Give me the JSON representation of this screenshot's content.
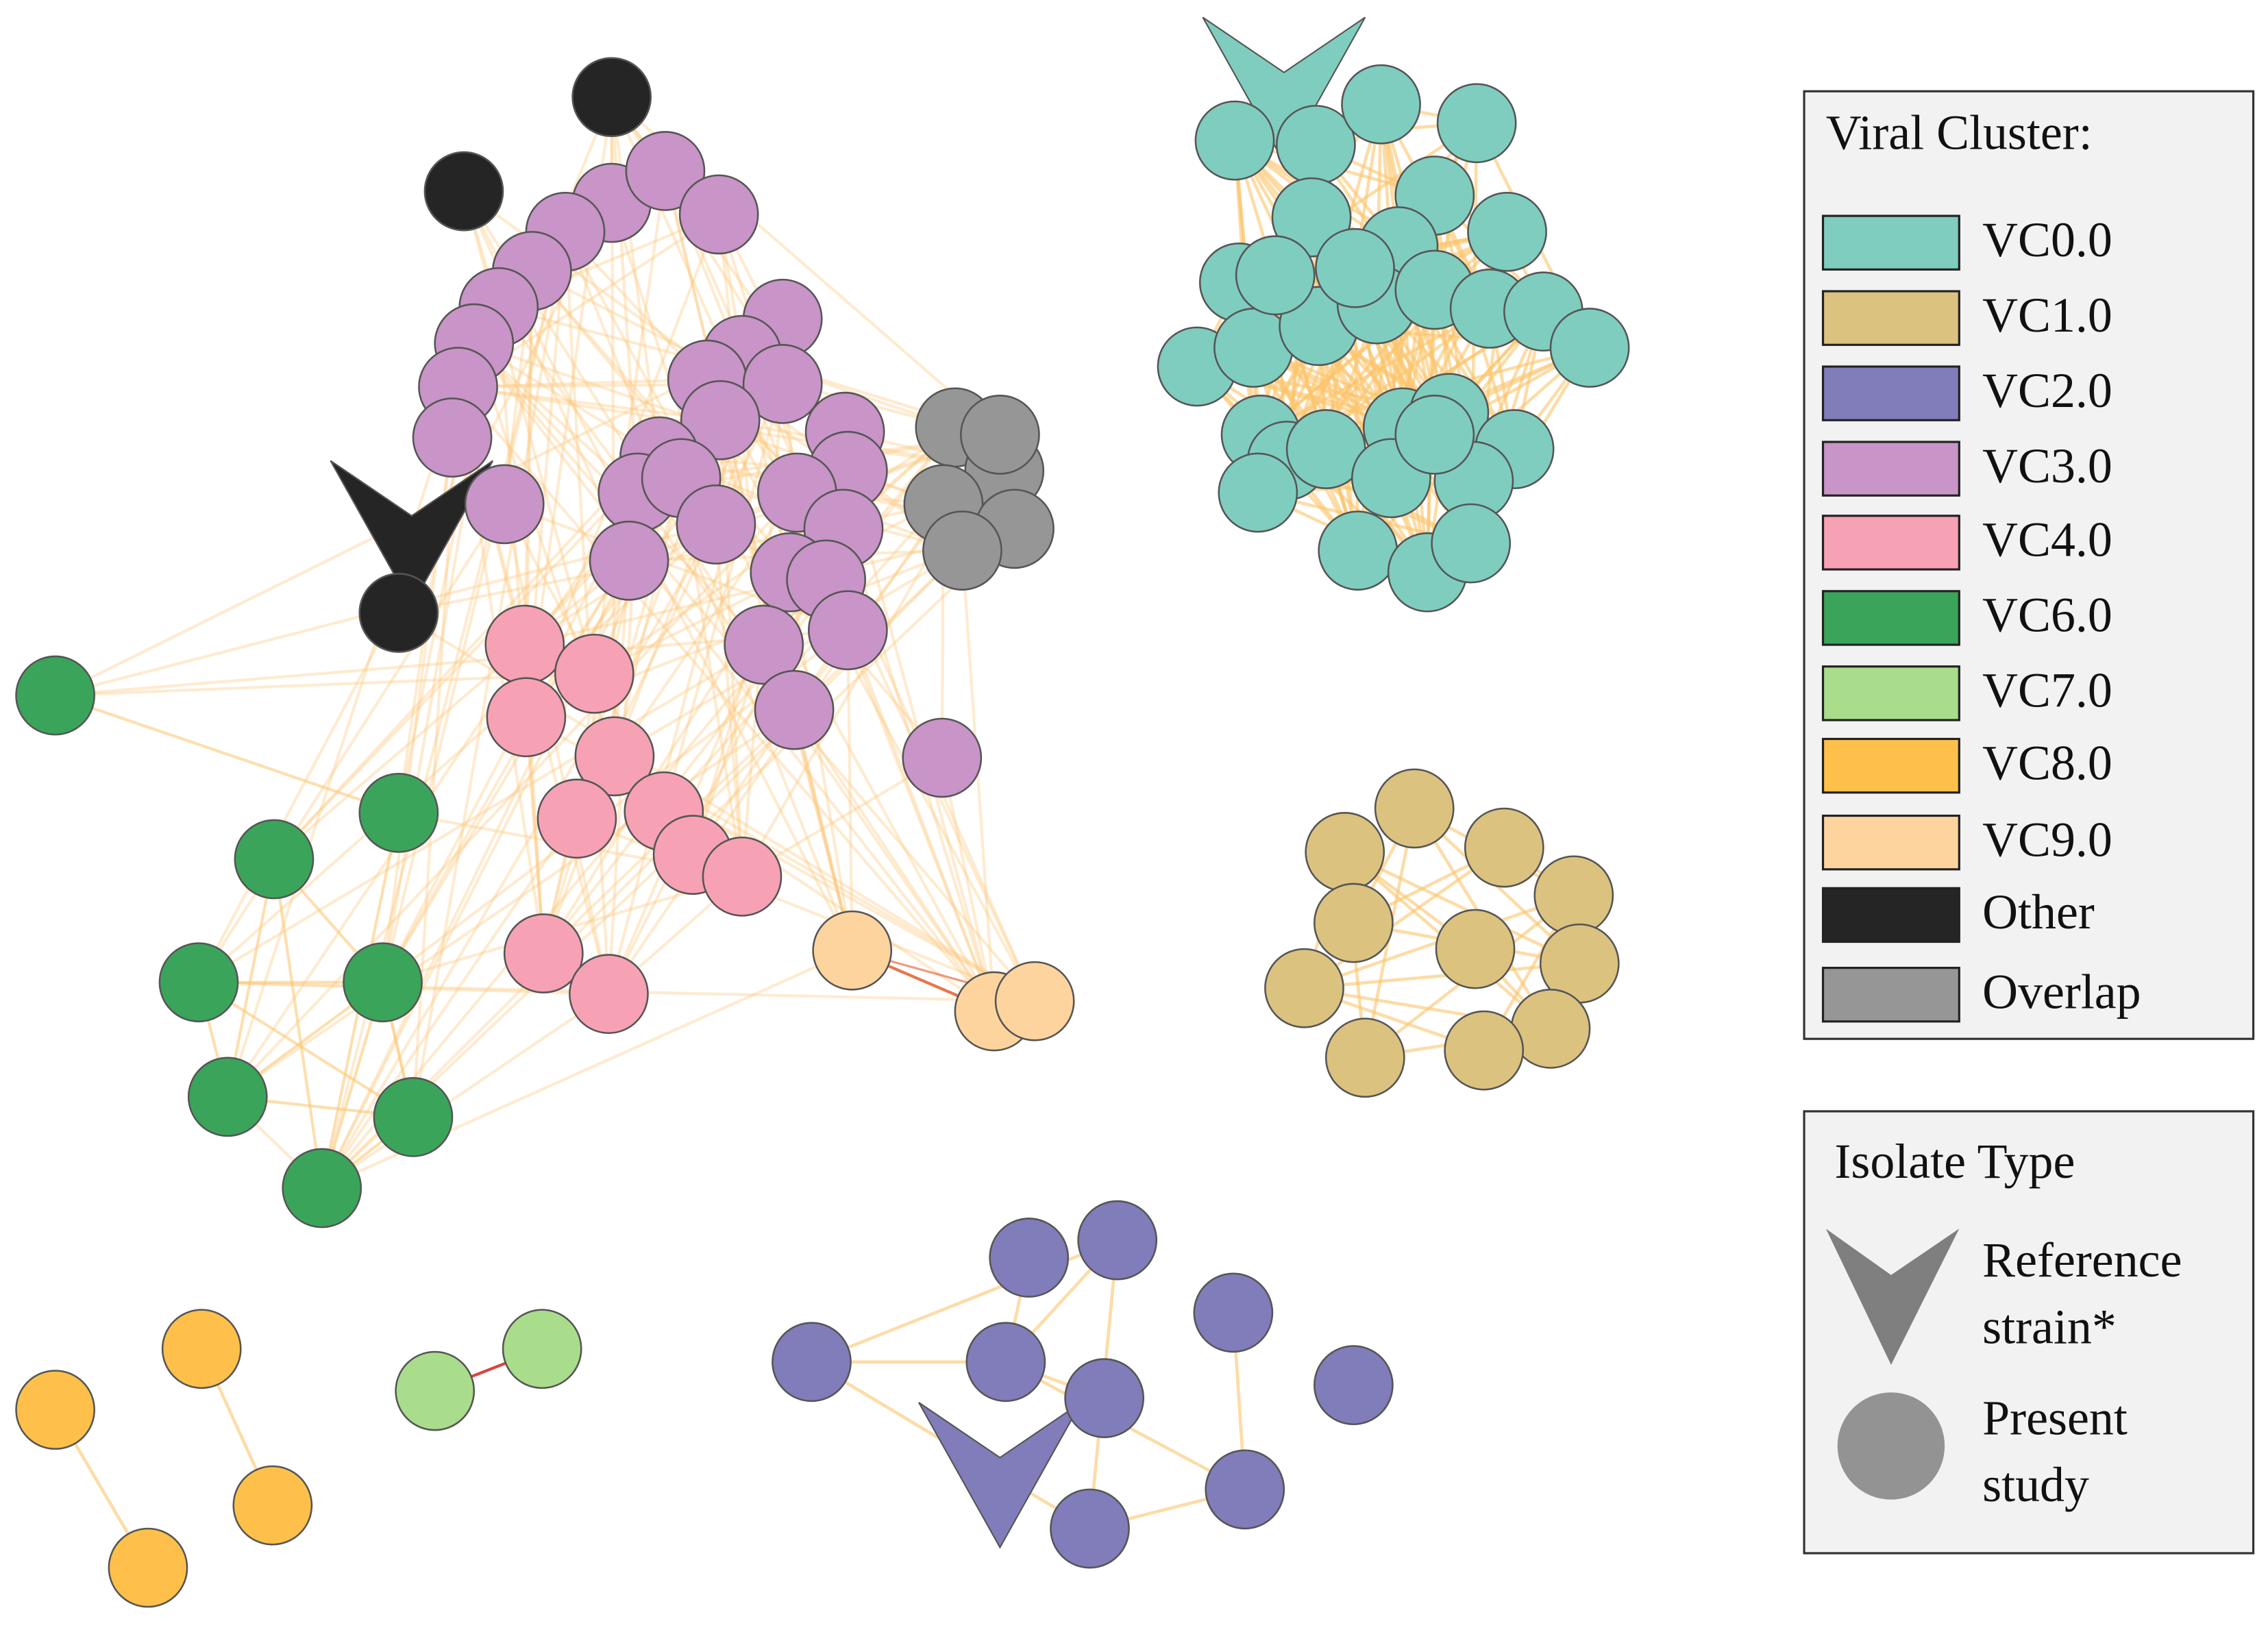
{
  "legend": {
    "title": "Viral Cluster:",
    "items": [
      {
        "label": "VC0.0",
        "color": "#7fcdbf"
      },
      {
        "label": "VC1.0",
        "color": "#dcc27f"
      },
      {
        "label": "VC2.0",
        "color": "#807dba"
      },
      {
        "label": "VC3.0",
        "color": "#c994c7"
      },
      {
        "label": "VC4.0",
        "color": "#f7a1b5"
      },
      {
        "label": "VC6.0",
        "color": "#3aa55a"
      },
      {
        "label": "VC7.0",
        "color": "#a9dd8c"
      },
      {
        "label": "VC8.0",
        "color": "#fec04a"
      },
      {
        "label": "VC9.0",
        "color": "#fdd49e"
      },
      {
        "label": "Other",
        "color": "#252525"
      },
      {
        "label": "Overlap",
        "color": "#969696"
      }
    ]
  },
  "isolate_legend": {
    "title": "Isolate Type",
    "items": [
      {
        "label": "Reference strain*"
      },
      {
        "label": "Present study"
      }
    ]
  }
}
